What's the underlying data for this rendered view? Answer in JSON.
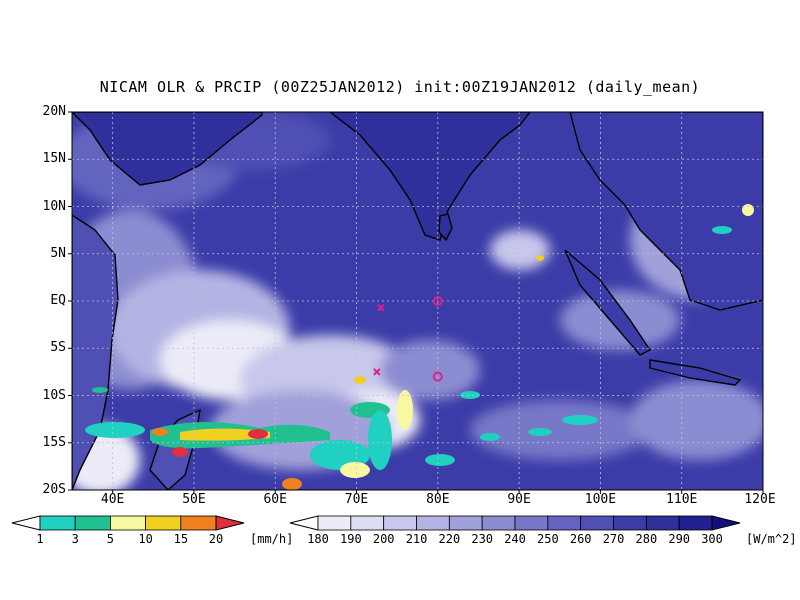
{
  "title": "NICAM OLR & PRCIP (00Z25JAN2012) init:00Z19JAN2012 (daily_mean)",
  "latitude_labels": [
    "20N",
    "15N",
    "10N",
    "5N",
    "EQ",
    "5S",
    "10S",
    "15S",
    "20S"
  ],
  "longitude_labels": [
    "40E",
    "50E",
    "60E",
    "70E",
    "80E",
    "90E",
    "100E",
    "110E",
    "120E"
  ],
  "precip_colorbar": {
    "labels": [
      "1",
      "3",
      "5",
      "10",
      "15",
      "20"
    ],
    "unit": "[mm/h]",
    "colors": [
      "#ffffff",
      "#20d0c0",
      "#20c090",
      "#f8f8a0",
      "#f0d020",
      "#f08020",
      "#e03040"
    ]
  },
  "olr_colorbar": {
    "labels": [
      "180",
      "190",
      "200",
      "210",
      "220",
      "230",
      "240",
      "250",
      "260",
      "270",
      "280",
      "290",
      "300"
    ],
    "unit": "[W/m^2]",
    "colors": [
      "#ffffff",
      "#ececf8",
      "#dcdcf2",
      "#c8c8ec",
      "#b4b4e4",
      "#a0a0da",
      "#8c8cd2",
      "#7878c8",
      "#6464c0",
      "#5050b4",
      "#3c3ca8",
      "#30309c",
      "#202090",
      "#121080"
    ]
  },
  "markers": [
    {
      "symbol": "x",
      "lon": 73,
      "lat": -0.7
    },
    {
      "symbol": "x",
      "lon": 72.5,
      "lat": -7.5
    },
    {
      "symbol": "o",
      "lon": 80,
      "lat": 0
    },
    {
      "symbol": "o",
      "lon": 80,
      "lat": -8
    }
  ],
  "marker_color": "#e0208c"
}
